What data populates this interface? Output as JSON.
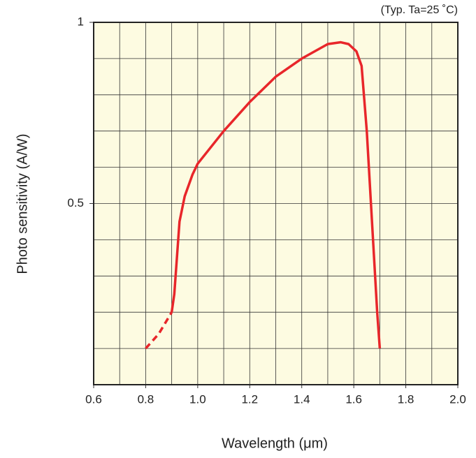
{
  "chart_data": {
    "type": "line",
    "annotation": "(Typ. Ta=25 ˚C)",
    "xlabel": "Wavelength (μm)",
    "ylabel": "Photo sensitivity (A/W)",
    "xlim": [
      0.6,
      2.0
    ],
    "xticks": [
      0.6,
      0.8,
      {
        "value": 1.0,
        "label": "1.0"
      },
      1.2,
      1.4,
      1.6,
      1.8,
      {
        "value": 2.0,
        "label": "2.0"
      }
    ],
    "ylim": [
      0,
      1
    ],
    "yticks": [
      0.5,
      1
    ],
    "xgrid": [
      0.7,
      0.8,
      0.9,
      1.0,
      1.1,
      1.2,
      1.3,
      1.4,
      1.5,
      1.6,
      1.7,
      1.8,
      1.9
    ],
    "ygrid": [
      0.1,
      0.2,
      0.3,
      0.4,
      0.5,
      0.6,
      0.7,
      0.8,
      0.9
    ],
    "grid": true,
    "background": "#fdfbe1",
    "series": [
      {
        "color": "#e8262a",
        "dashed": true,
        "x": [
          0.8,
          0.85,
          0.9
        ],
        "values": [
          0.1,
          0.14,
          0.2
        ]
      },
      {
        "color": "#e8262a",
        "dashed": false,
        "x": [
          0.9,
          0.91,
          0.92,
          0.93,
          0.95,
          0.98,
          1.0,
          1.1,
          1.2,
          1.3,
          1.4,
          1.5,
          1.55,
          1.58,
          1.61,
          1.63,
          1.65,
          1.67,
          1.69,
          1.7
        ],
        "values": [
          0.2,
          0.25,
          0.35,
          0.45,
          0.52,
          0.58,
          0.61,
          0.7,
          0.78,
          0.85,
          0.9,
          0.94,
          0.945,
          0.94,
          0.92,
          0.88,
          0.7,
          0.45,
          0.2,
          0.1
        ]
      }
    ]
  }
}
